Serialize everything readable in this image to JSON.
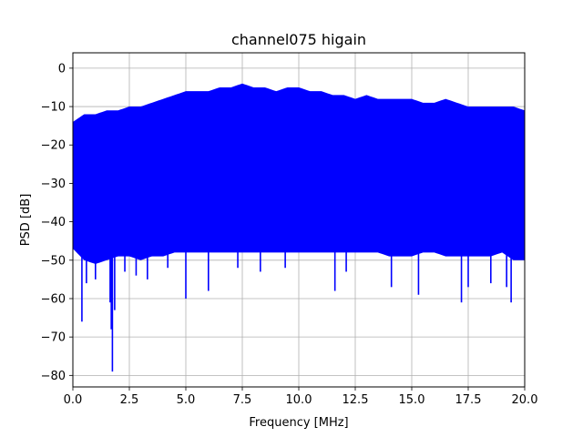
{
  "chart_data": {
    "type": "line",
    "title": "channel075 higain",
    "xlabel": "Frequency [MHz]",
    "ylabel": "PSD [dB]",
    "xlim": [
      0,
      20
    ],
    "ylim": [
      -83,
      4
    ],
    "grid": true,
    "xticks": [
      0,
      2.5,
      5,
      7.5,
      10,
      12.5,
      15,
      17.5,
      20
    ],
    "xtick_labels": [
      "0.0",
      "2.5",
      "5.0",
      "7.5",
      "10.0",
      "12.5",
      "15.0",
      "17.5",
      "20.0"
    ],
    "yticks": [
      0,
      -10,
      -20,
      -30,
      -40,
      -50,
      -60,
      -70,
      -80
    ],
    "ytick_labels": [
      "0",
      "−10",
      "−20",
      "−30",
      "−40",
      "−50",
      "−60",
      "−70",
      "−80"
    ],
    "series": [
      {
        "color": "#0000ff",
        "envelope_x": [
          0.0,
          0.5,
          1.0,
          1.5,
          2.0,
          2.5,
          3.0,
          3.5,
          4.0,
          4.5,
          5.0,
          5.5,
          6.0,
          6.5,
          7.0,
          7.5,
          8.0,
          8.5,
          9.0,
          9.5,
          10.0,
          10.5,
          11.0,
          11.5,
          12.0,
          12.5,
          13.0,
          13.5,
          14.0,
          14.5,
          15.0,
          15.5,
          16.0,
          16.5,
          17.0,
          17.5,
          18.0,
          18.5,
          19.0,
          19.5,
          20.0
        ],
        "envelope_upper": [
          -16,
          -14,
          -14,
          -13,
          -13,
          -12,
          -12,
          -11,
          -10,
          -9,
          -8,
          -8,
          -8,
          -7,
          -7,
          -6,
          -7,
          -7,
          -8,
          -7,
          -7,
          -8,
          -8,
          -9,
          -9,
          -10,
          -9,
          -10,
          -10,
          -10,
          -10,
          -11,
          -11,
          -10,
          -11,
          -12,
          -12,
          -12,
          -12,
          -12,
          -13
        ],
        "envelope_lower": [
          -45,
          -48,
          -49,
          -48,
          -47,
          -47,
          -48,
          -47,
          -47,
          -46,
          -46,
          -46,
          -46,
          -46,
          -46,
          -46,
          -46,
          -46,
          -46,
          -46,
          -46,
          -46,
          -46,
          -46,
          -46,
          -46,
          -46,
          -46,
          -47,
          -47,
          -47,
          -46,
          -46,
          -47,
          -47,
          -47,
          -47,
          -47,
          -46,
          -48,
          -48
        ],
        "dips": [
          {
            "x": 0.4,
            "y": -66
          },
          {
            "x": 0.6,
            "y": -56
          },
          {
            "x": 1.0,
            "y": -55
          },
          {
            "x": 1.65,
            "y": -61
          },
          {
            "x": 1.7,
            "y": -68
          },
          {
            "x": 1.75,
            "y": -79
          },
          {
            "x": 1.85,
            "y": -63
          },
          {
            "x": 2.3,
            "y": -53
          },
          {
            "x": 2.8,
            "y": -54
          },
          {
            "x": 3.3,
            "y": -55
          },
          {
            "x": 4.2,
            "y": -52
          },
          {
            "x": 5.0,
            "y": -60
          },
          {
            "x": 6.0,
            "y": -58
          },
          {
            "x": 7.3,
            "y": -52
          },
          {
            "x": 8.3,
            "y": -53
          },
          {
            "x": 9.4,
            "y": -52
          },
          {
            "x": 11.6,
            "y": -58
          },
          {
            "x": 12.1,
            "y": -53
          },
          {
            "x": 14.1,
            "y": -57
          },
          {
            "x": 15.3,
            "y": -59
          },
          {
            "x": 17.2,
            "y": -61
          },
          {
            "x": 17.5,
            "y": -57
          },
          {
            "x": 18.5,
            "y": -56
          },
          {
            "x": 19.2,
            "y": -57
          },
          {
            "x": 19.4,
            "y": -61
          }
        ]
      }
    ]
  }
}
